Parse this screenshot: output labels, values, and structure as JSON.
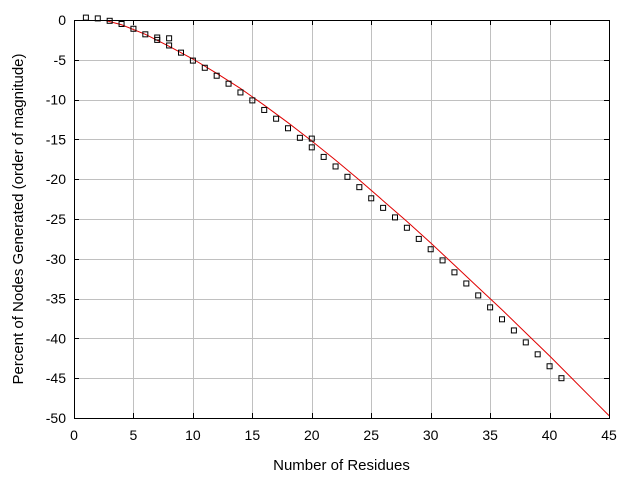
{
  "chart_data": {
    "type": "scatter",
    "title": "",
    "xlabel": "Number of Residues",
    "ylabel": "Percent of Nodes Generated (order of magnitude)",
    "xlim": [
      0,
      45
    ],
    "ylim": [
      -50,
      0
    ],
    "x_ticks": [
      0,
      5,
      10,
      15,
      20,
      25,
      30,
      35,
      40,
      45
    ],
    "y_ticks": [
      0,
      -5,
      -10,
      -15,
      -20,
      -25,
      -30,
      -35,
      -40,
      -45,
      -50
    ],
    "x_tick_labels": [
      "0",
      "5",
      "10",
      "15",
      "20",
      "25",
      "30",
      "35",
      "40",
      "45"
    ],
    "y_tick_labels": [
      "0",
      "-5",
      "-10",
      "-15",
      "-20",
      "-25",
      "-30",
      "-35",
      "-40",
      "-45",
      "-50"
    ],
    "grid": true,
    "legend": "none",
    "series": [
      {
        "kind": "points",
        "marker": "square",
        "color": "#000000",
        "x": [
          1,
          2,
          3,
          4,
          5,
          6,
          7,
          7,
          8,
          8,
          9,
          10,
          11,
          12,
          13,
          14,
          15,
          16,
          17,
          18,
          19,
          20,
          20,
          21,
          22,
          23,
          24,
          25,
          26,
          27,
          28,
          29,
          30,
          31,
          32,
          33,
          34,
          35,
          36,
          37,
          38,
          39,
          40,
          41
        ],
        "y": [
          0.3,
          0.2,
          -0.1,
          -0.5,
          -1.1,
          -1.8,
          -2.5,
          -2.2,
          -3.2,
          -2.3,
          -4.1,
          -5.1,
          -6.0,
          -7.0,
          -8.0,
          -9.1,
          -10.1,
          -11.3,
          -12.4,
          -13.6,
          -14.8,
          -16.0,
          -14.9,
          -17.2,
          -18.4,
          -19.7,
          -21.0,
          -22.4,
          -23.6,
          -24.8,
          -26.1,
          -27.5,
          -28.8,
          -30.2,
          -31.7,
          -33.1,
          -34.6,
          -36.1,
          -37.6,
          -39.0,
          -40.5,
          -42.0,
          -43.5,
          -45.0
        ]
      },
      {
        "kind": "line",
        "color": "#e00000",
        "x": [
          0,
          2,
          4,
          6,
          8,
          10,
          12,
          14,
          16,
          18,
          20,
          22,
          24,
          26,
          28,
          30,
          32,
          34,
          36,
          38,
          40,
          42,
          44,
          45
        ],
        "y": [
          0.5,
          0.2,
          -0.6,
          -1.8,
          -3.3,
          -4.9,
          -6.7,
          -8.6,
          -10.7,
          -12.9,
          -15.2,
          -17.6,
          -20.1,
          -22.7,
          -25.3,
          -28.0,
          -30.8,
          -33.6,
          -36.4,
          -39.3,
          -42.2,
          -45.2,
          -48.2,
          -49.7
        ]
      }
    ]
  }
}
